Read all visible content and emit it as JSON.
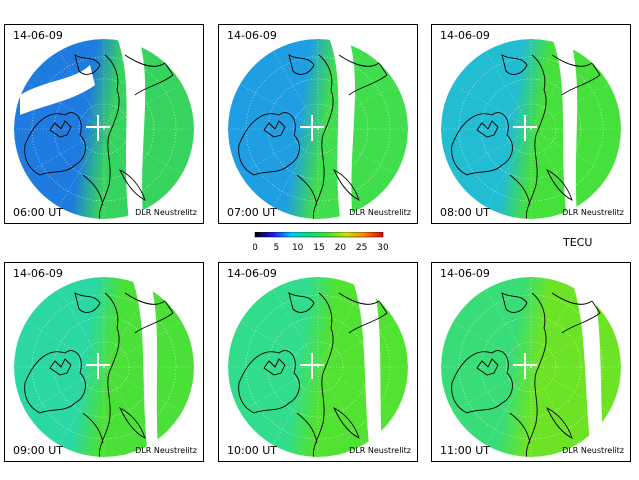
{
  "panels": [
    {
      "date": "14-06-09",
      "time": "06:00 UT",
      "credit": "DLR Neustrelitz",
      "gap_angle": 0.1,
      "gap_width": 14,
      "west_color": "#1e7be0",
      "east_color": "#37d35f"
    },
    {
      "date": "14-06-09",
      "time": "07:00 UT",
      "credit": "DLR Neustrelitz",
      "gap_angle": 0.05,
      "gap_width": 12,
      "west_color": "#1f9ee3",
      "east_color": "#40dd4c"
    },
    {
      "date": "14-06-09",
      "time": "08:00 UT",
      "credit": "DLR Neustrelitz",
      "gap_angle": 0.3,
      "gap_width": 10,
      "west_color": "#22bcd3",
      "east_color": "#45e03c"
    },
    {
      "date": "14-06-09",
      "time": "09:00 UT",
      "credit": "DLR Neustrelitz",
      "gap_angle": 0.45,
      "gap_width": 10,
      "west_color": "#2bd7a3",
      "east_color": "#4ae038"
    },
    {
      "date": "14-06-09",
      "time": "10:00 UT",
      "credit": "DLR Neustrelitz",
      "gap_angle": 0.6,
      "gap_width": 12,
      "west_color": "#31dc8c",
      "east_color": "#52e232"
    },
    {
      "date": "14-06-09",
      "time": "11:00 UT",
      "credit": "DLR Neustrelitz",
      "gap_angle": 0.75,
      "gap_width": 12,
      "west_color": "#38dd77",
      "east_color": "#6ce425"
    }
  ],
  "colorbar": {
    "ticks": [
      "0",
      "5",
      "10",
      "15",
      "20",
      "25",
      "30"
    ],
    "unit": "TECU",
    "colors": [
      "#000000",
      "#1a1aff",
      "#00c8ff",
      "#00e07a",
      "#4ae03a",
      "#c8e800",
      "#ff8000",
      "#e00000"
    ]
  }
}
